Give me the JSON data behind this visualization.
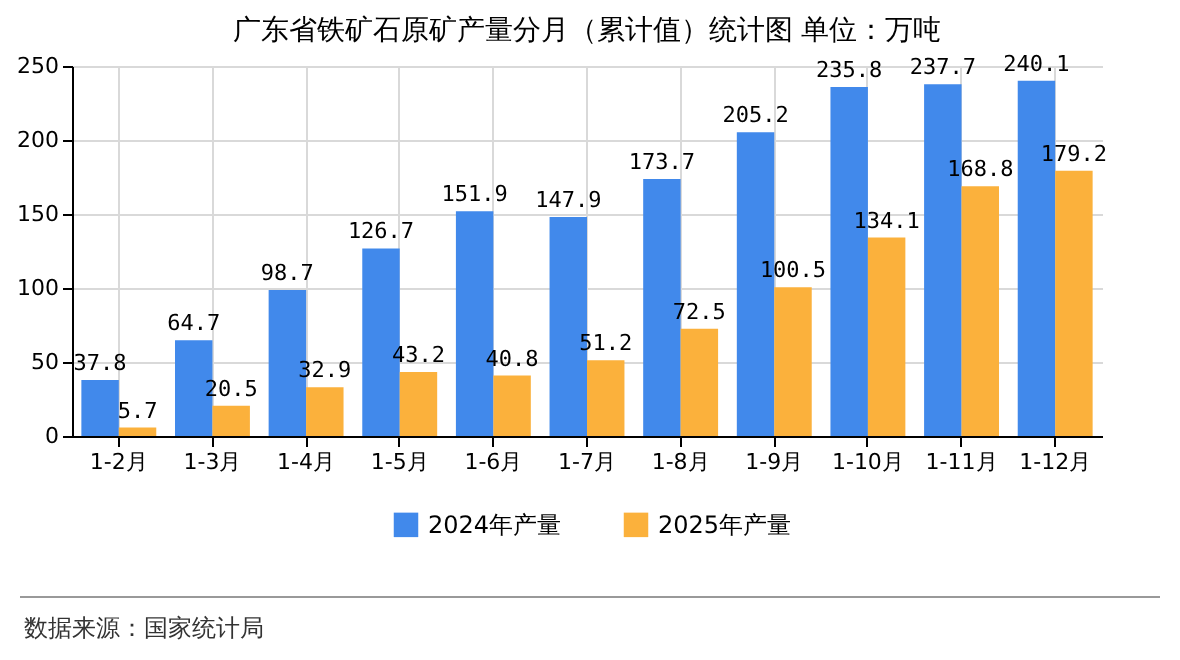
{
  "chart_data": {
    "type": "bar",
    "title": "广东省铁矿石原矿产量分月（累计值）统计图 单位：万吨",
    "categories": [
      "1-2月",
      "1-3月",
      "1-4月",
      "1-5月",
      "1-6月",
      "1-7月",
      "1-8月",
      "1-9月",
      "1-10月",
      "1-11月",
      "1-12月"
    ],
    "series": [
      {
        "name": "2024年产量",
        "color": "#4189eb",
        "values": [
          37.8,
          64.7,
          98.7,
          126.7,
          151.9,
          147.9,
          173.7,
          205.2,
          235.8,
          237.7,
          240.1
        ]
      },
      {
        "name": "2025年产量",
        "color": "#fbb13c",
        "values": [
          5.7,
          20.5,
          32.9,
          43.2,
          40.8,
          51.2,
          72.5,
          100.5,
          134.1,
          168.8,
          179.2
        ]
      }
    ],
    "ylim": [
      0,
      250
    ],
    "yticks": [
      0,
      50,
      100,
      150,
      200,
      250
    ],
    "grid": true,
    "legend": "bottom",
    "data_labels": true,
    "annotations": [
      "数据来源：国家统计局"
    ]
  }
}
